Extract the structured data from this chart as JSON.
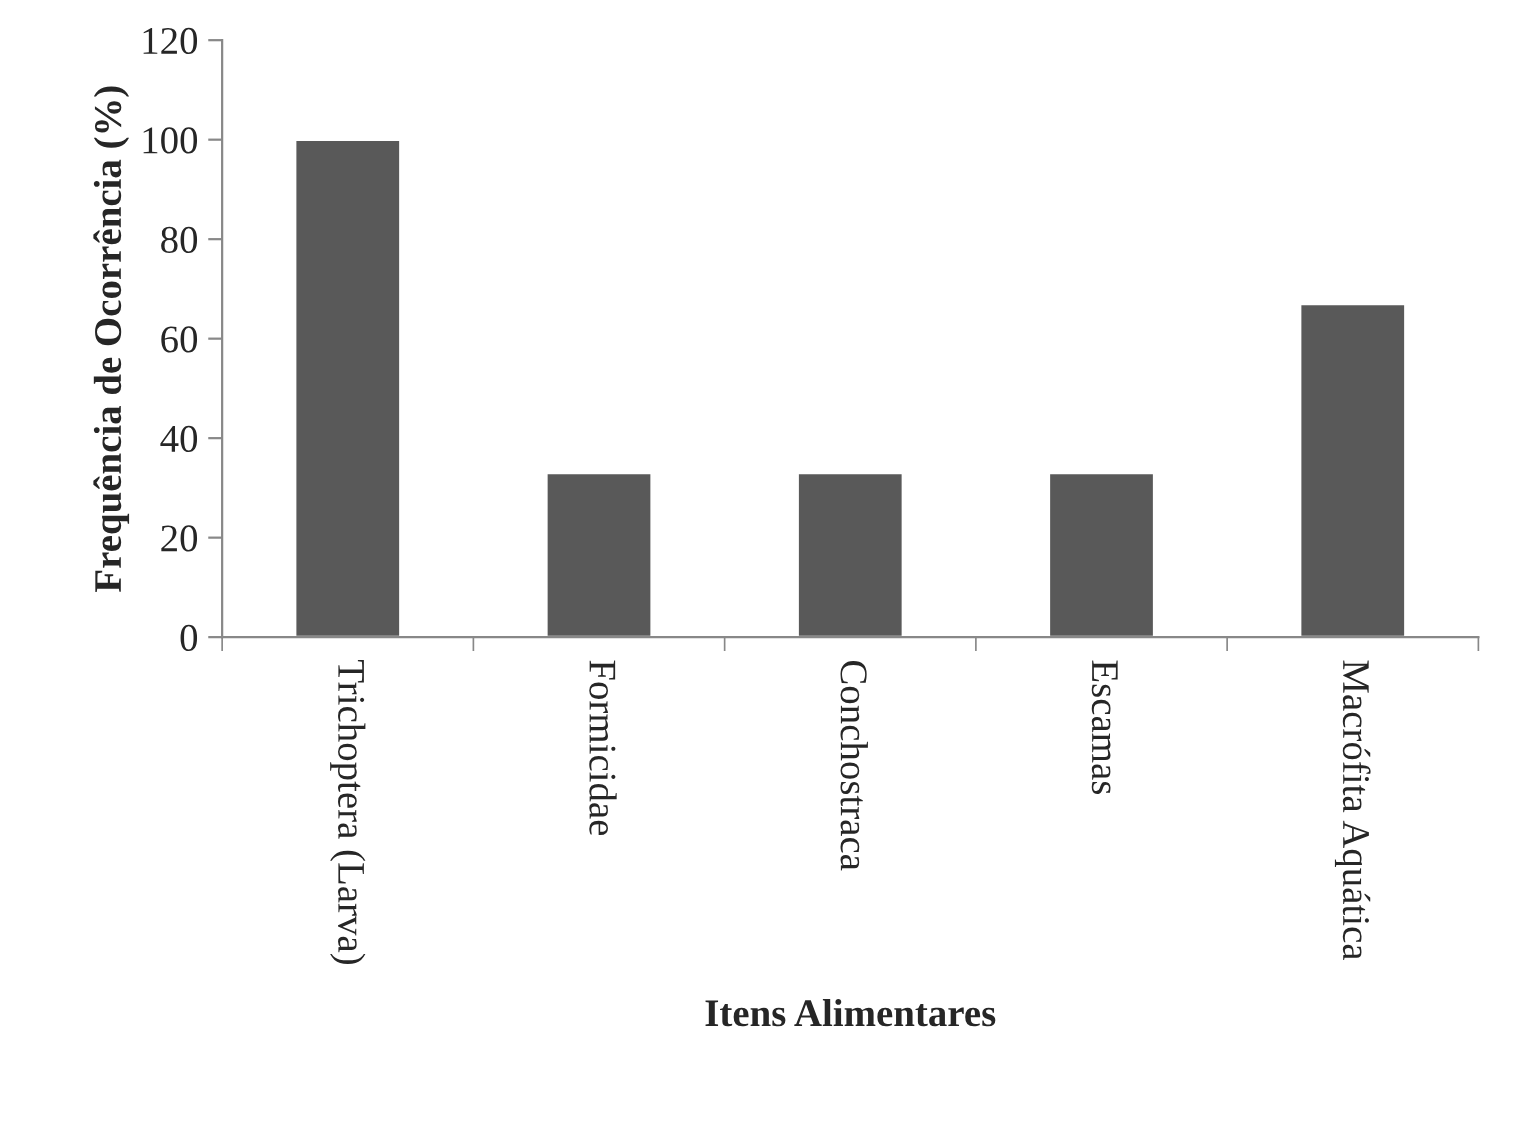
{
  "chart_data": {
    "type": "bar",
    "xlabel": "Itens Alimentares",
    "ylabel": "Frequência de Ocorrência (%)",
    "categories": [
      "Trichoptera (Larva)",
      "Formicidae",
      "Conchostraca",
      "Escamas",
      "Macrófita Aquática"
    ],
    "values": [
      100,
      33,
      33,
      33,
      67
    ],
    "color": "#595959",
    "ylim": [
      0,
      120
    ],
    "yticks": [
      0,
      20,
      40,
      60,
      80,
      100,
      120
    ],
    "grid": false,
    "legend": false
  }
}
